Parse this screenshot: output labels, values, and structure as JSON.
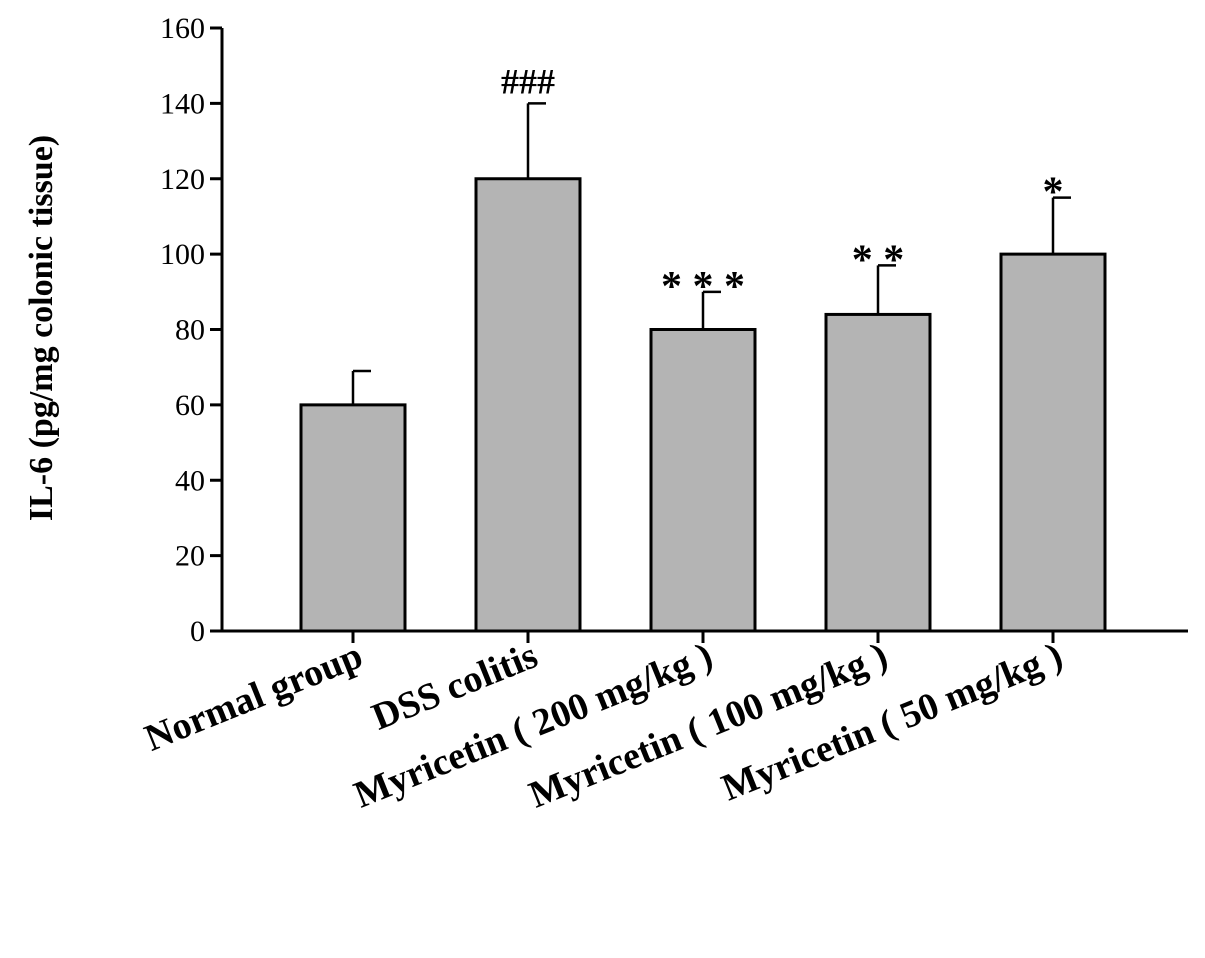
{
  "chart_data": {
    "type": "bar",
    "ylabel": "IL-6 (pg/mg colonic tissue)",
    "xlabel": "",
    "ylim": [
      0,
      160
    ],
    "yticks": [
      0,
      20,
      40,
      60,
      80,
      100,
      120,
      140,
      160
    ],
    "categories": [
      "Normal group",
      "DSS colitis",
      "Myricetin ( 200 mg/kg )",
      "Myricetin ( 100 mg/kg )",
      "Myricetin ( 50 mg/kg )"
    ],
    "values": [
      60,
      120,
      80,
      84,
      100
    ],
    "error_upper": [
      69,
      140,
      90,
      97,
      115
    ],
    "annotations": [
      "",
      "###",
      "* * *",
      "* *",
      "*"
    ],
    "bar_color": "#b4b4b4",
    "grid": false
  }
}
